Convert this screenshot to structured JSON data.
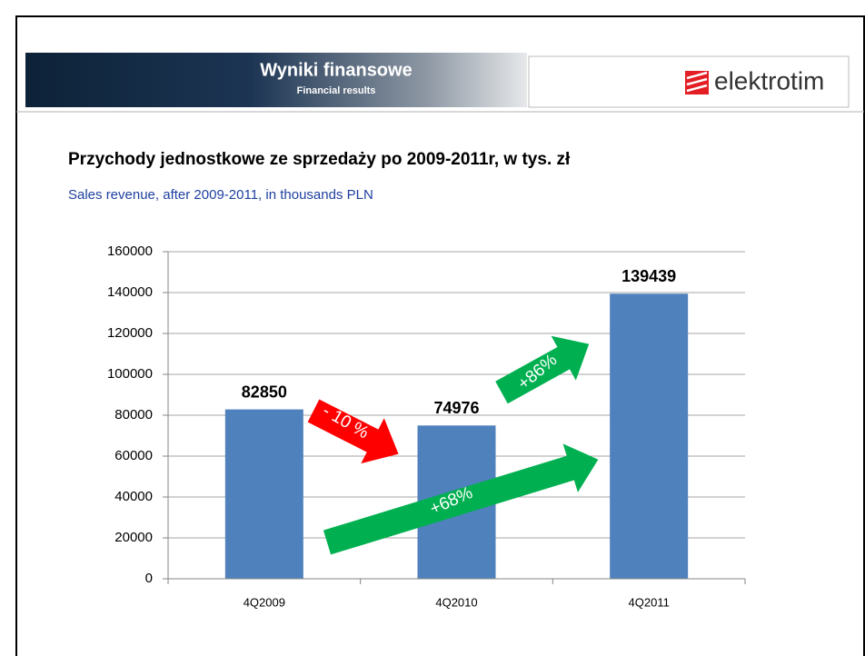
{
  "header": {
    "title": "Wyniki finansowe",
    "subtitle": "Financial results",
    "logo": "elektrotim"
  },
  "chart_data": {
    "type": "bar",
    "title": "Przychody jednostkowe ze sprzedaży po 2009-2011r, w tys. zł",
    "subtitle": "Sales revenue, after 2009-2011, in thousands PLN",
    "categories": [
      "4Q2009",
      "4Q2010",
      "4Q2011"
    ],
    "values": [
      82850,
      74976,
      139439
    ],
    "color": "#4f81bd",
    "ylim": [
      0,
      160000
    ],
    "yticks": [
      0,
      20000,
      40000,
      60000,
      80000,
      100000,
      120000,
      140000,
      160000
    ],
    "grid": true,
    "annotations": [
      {
        "text": "- 10 %",
        "color": "#ff0000"
      },
      {
        "text": "+86%",
        "color": "#00b050"
      },
      {
        "text": "+68%",
        "color": "#00b050"
      }
    ]
  }
}
